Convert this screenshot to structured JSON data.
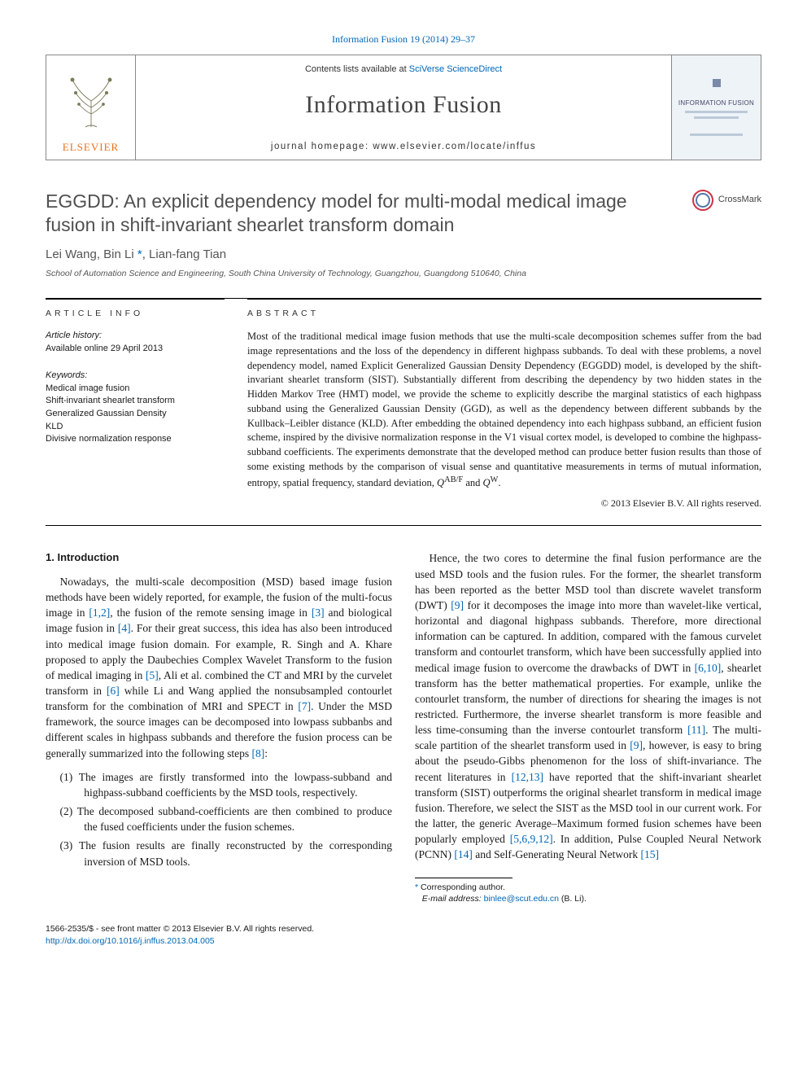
{
  "header": {
    "citation_line": "Information Fusion 19 (2014) 29–37",
    "contents_line_prefix": "Contents lists available at ",
    "contents_line_link": "SciVerse ScienceDirect",
    "journal_name": "Information Fusion",
    "homepage_label": "journal homepage: ",
    "homepage_url": "www.elsevier.com/locate/inffus",
    "publisher_logo_text": "ELSEVIER",
    "cover_text": "INFORMATION FUSION",
    "crossmark_label": "CrossMark",
    "typography": {
      "journal_name_fontsize_pt": 22,
      "contents_fontsize_pt": 8,
      "homepage_fontsize_pt": 8.5,
      "border_color": "#888888",
      "cover_bg": "#eef3f8",
      "publisher_color": "#e9711c"
    }
  },
  "article": {
    "title": "EGGDD: An explicit dependency model for multi-modal medical image fusion in shift-invariant shearlet transform domain",
    "title_fontsize_pt": 17,
    "title_color": "#505050",
    "authors_line": "Lei Wang, Bin Li",
    "authors_tail": ", Lian-fang Tian",
    "corresponding_symbol": "*",
    "affiliation": "School of Automation Science and Engineering, South China University of Technology, Guangzhou, Guangdong 510640, China"
  },
  "info": {
    "section_label": "article info",
    "history_label": "Article history:",
    "history_value": "Available online 29 April 2013",
    "keywords_label": "Keywords:",
    "keywords": [
      "Medical image fusion",
      "Shift-invariant shearlet transform",
      "Generalized Gaussian Density",
      "KLD",
      "Divisive normalization response"
    ]
  },
  "abstract": {
    "section_label": "abstract",
    "text": "Most of the traditional medical image fusion methods that use the multi-scale decomposition schemes suffer from the bad image representations and the loss of the dependency in different highpass subbands. To deal with these problems, a novel dependency model, named Explicit Generalized Gaussian Density Dependency (EGGDD) model, is developed by the shift-invariant shearlet transform (SIST). Substantially different from describing the dependency by two hidden states in the Hidden Markov Tree (HMT) model, we provide the scheme to explicitly describe the marginal statistics of each highpass subband using the Generalized Gaussian Density (GGD), as well as the dependency between different subbands by the Kullback–Leibler distance (KLD). After embedding the obtained dependency into each highpass subband, an efficient fusion scheme, inspired by the divisive normalization response in the V1 visual cortex model, is developed to combine the highpass-subband coefficients. The experiments demonstrate that the developed method can produce better fusion results than those of some existing methods by the comparison of visual sense and quantitative measurements in terms of mutual information, entropy, spatial frequency, standard deviation, QAB/F and QW.",
    "copyright": "© 2013 Elsevier B.V. All rights reserved."
  },
  "body": {
    "section1_heading": "1. Introduction",
    "p1": "Nowadays, the multi-scale decomposition (MSD) based image fusion methods have been widely reported, for example, the fusion of the multi-focus image in [1,2], the fusion of the remote sensing image in [3] and biological image fusion in [4]. For their great success, this idea has also been introduced into medical image fusion domain. For example, R. Singh and A. Khare proposed to apply the Daubechies Complex Wavelet Transform to the fusion of medical imaging in [5], Ali et al. combined the CT and MRI by the curvelet transform in [6] while Li and Wang applied the nonsubsampled contourlet transform for the combination of MRI and SPECT in [7]. Under the MSD framework, the source images can be decomposed into lowpass subbanbs and different scales in highpass subbands and therefore the fusion process can be generally summarized into the following steps [8]:",
    "steps": [
      "(1) The images are firstly transformed into the lowpass-subband and highpass-subband coefficients by the MSD tools, respectively.",
      "(2) The decomposed subband-coefficients are then combined to produce the fused coefficients under the fusion schemes.",
      "(3) The fusion results are finally reconstructed by the corresponding inversion of MSD tools."
    ],
    "p2": "Hence, the two cores to determine the final fusion performance are the used MSD tools and the fusion rules. For the former, the shearlet transform has been reported as the better MSD tool than discrete wavelet transform (DWT) [9] for it decomposes the image into more than wavelet-like vertical, horizontal and diagonal highpass subbands. Therefore, more directional information can be captured. In addition, compared with the famous curvelet transform and contourlet transform, which have been successfully applied into medical image fusion to overcome the drawbacks of DWT in [6,10], shearlet transform has the better mathematical properties. For example, unlike the contourlet transform, the number of directions for shearing the images is not restricted. Furthermore, the inverse shearlet transform is more feasible and less time-consuming than the inverse contourlet transform [11]. The multi-scale partition of the shearlet transform used in [9], however, is easy to bring about the pseudo-Gibbs phenomenon for the loss of shift-invariance. The recent literatures in [12,13] have reported that the shift-invariant shearlet transform (SIST) outperforms the original shearlet transform in medical image fusion. Therefore, we select the SIST as the MSD tool in our current work. For the latter, the generic Average–Maximum formed fusion schemes have been popularly employed [5,6,9,12]. In addition, Pulse Coupled Neural Network (PCNN) [14] and Self-Generating Neural Network [15]",
    "ref_links": [
      "[1,2]",
      "[3]",
      "[4]",
      "[5]",
      "[6]",
      "[7]",
      "[8]",
      "[9]",
      "[6,10]",
      "[11]",
      "[12,13]",
      "[5,6,9,12]",
      "[14]",
      "[15]"
    ]
  },
  "footnote": {
    "corr_label": "Corresponding author.",
    "email_label": "E-mail address: ",
    "email": "binlee@scut.edu.cn",
    "email_tail": " (B. Li)."
  },
  "footer": {
    "issn_line": "1566-2535/$ - see front matter © 2013 Elsevier B.V. All rights reserved.",
    "doi": "http://dx.doi.org/10.1016/j.inffus.2013.04.005"
  },
  "colors": {
    "link": "#0066b3",
    "body_text": "#1a1a1a",
    "heading_grey": "#505050",
    "rule": "#000000"
  }
}
